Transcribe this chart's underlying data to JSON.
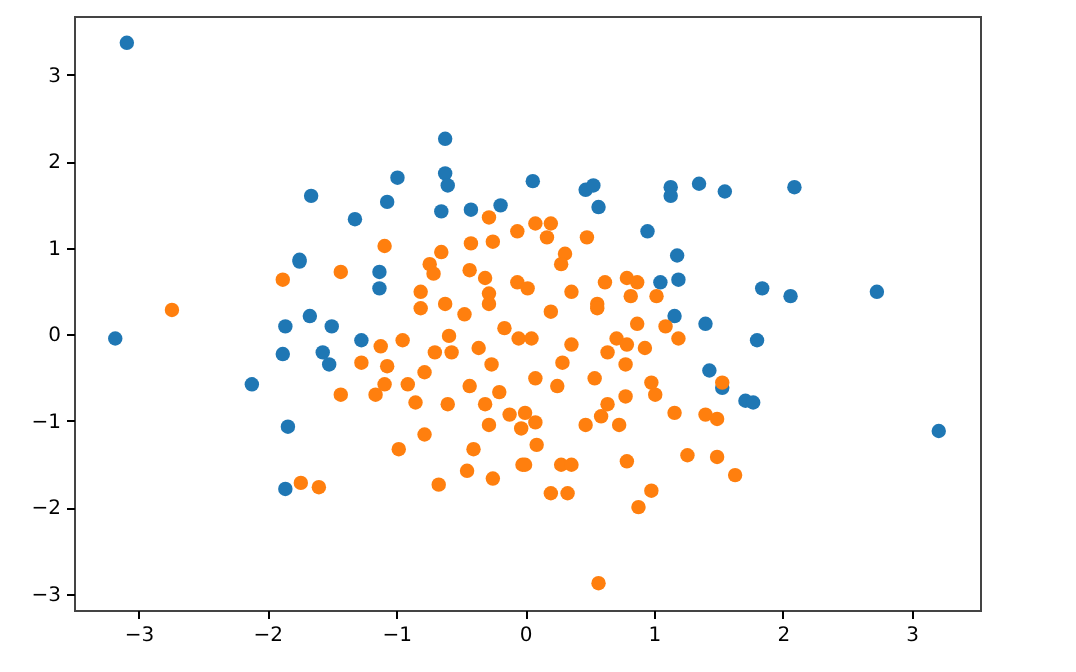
{
  "chart_data": {
    "type": "scatter",
    "marker": "circle",
    "grid": false,
    "xlim": [
      -3.5,
      3.53
    ],
    "ylim": [
      -3.19,
      3.68
    ],
    "xticks": [
      -3,
      -2,
      -1,
      0,
      1,
      2,
      3
    ],
    "yticks": [
      -3,
      -2,
      -1,
      0,
      1,
      2,
      3
    ],
    "series": [
      {
        "color": "#1f77b4",
        "x": [
          -3.09,
          -3.18,
          -2.12,
          -1.84,
          -1.86,
          -1.66,
          -1.75,
          -1.88,
          -1.86,
          -1.67,
          -1.5,
          -1.57,
          -1.52,
          -1.27,
          -0.62,
          -0.99,
          -0.62,
          -0.6,
          -1.07,
          -1.32,
          -0.65,
          -0.42,
          -0.19,
          0.06,
          -1.75,
          -1.13,
          -1.13,
          0.47,
          0.53,
          0.57,
          1.13,
          1.13,
          1.35,
          1.55,
          2.09,
          0.95,
          1.18,
          1.05,
          1.19,
          1.84,
          2.06,
          2.73,
          1.16,
          1.4,
          1.8,
          1.43,
          1.53,
          1.71,
          1.77,
          3.21
        ],
        "values": [
          3.37,
          -0.05,
          -0.58,
          -1.07,
          -1.79,
          1.6,
          0.86,
          -0.23,
          0.09,
          0.21,
          0.09,
          -0.21,
          -0.35,
          -0.07,
          2.26,
          1.81,
          1.86,
          1.72,
          1.53,
          1.33,
          1.42,
          1.44,
          1.49,
          1.77,
          0.84,
          0.72,
          0.53,
          1.67,
          1.72,
          1.47,
          1.7,
          1.6,
          1.74,
          1.65,
          1.7,
          1.19,
          0.91,
          0.6,
          0.63,
          0.53,
          0.44,
          0.49,
          0.21,
          0.12,
          -0.07,
          -0.42,
          -0.62,
          -0.77,
          -0.79,
          -1.12
        ]
      },
      {
        "color": "#ff7f0e",
        "x": [
          -1.88,
          -2.74,
          -1.43,
          -1.09,
          -0.28,
          -0.06,
          -0.65,
          -0.42,
          -0.25,
          -0.74,
          -0.71,
          -0.43,
          -0.31,
          -0.06,
          -0.81,
          -0.28,
          0.08,
          0.2,
          0.17,
          0.48,
          0.31,
          0.28,
          0.62,
          0.79,
          0.87,
          0.82,
          1.02,
          0.36,
          0.02,
          0.56,
          -1.74,
          -1.6,
          -1.43,
          -1.27,
          -1.12,
          -0.95,
          -1.07,
          -1.16,
          -1.09,
          -0.91,
          -0.85,
          -0.78,
          -0.7,
          -0.59,
          -0.57,
          -0.6,
          -0.78,
          -0.98,
          -0.67,
          -0.4,
          -0.45,
          -0.25,
          -0.02,
          -0.43,
          -0.36,
          -0.26,
          -0.31,
          -0.28,
          -0.2,
          -0.12,
          -0.03,
          -0.16,
          -0.05,
          -0.81,
          -0.62,
          -0.47,
          -0.28,
          0.56,
          0.2,
          0.05,
          0.36,
          0.29,
          0.08,
          0.25,
          0.64,
          0.71,
          0.79,
          0.87,
          1.09,
          1.19,
          0.93,
          0.78,
          0.54,
          0.98,
          1.01,
          0.78,
          0.64,
          0.59,
          0.47,
          0.73,
          1.16,
          1.4,
          1.49,
          1.53,
          0.0,
          0.08,
          0.09,
          0.0,
          0.28,
          0.36,
          0.2,
          0.33,
          0.79,
          1.26,
          1.49,
          1.63,
          0.98,
          0.88,
          0.57
        ],
        "values": [
          0.63,
          0.28,
          0.72,
          1.02,
          1.35,
          1.19,
          0.95,
          1.05,
          1.07,
          0.81,
          0.7,
          0.74,
          0.65,
          0.6,
          0.49,
          0.47,
          1.28,
          1.28,
          1.12,
          1.12,
          0.93,
          0.81,
          0.6,
          0.65,
          0.6,
          0.44,
          0.44,
          0.49,
          0.53,
          0.35,
          -1.72,
          -1.77,
          -0.7,
          -0.33,
          -0.14,
          -0.07,
          -0.37,
          -0.7,
          -0.58,
          -0.58,
          -0.79,
          -0.44,
          -0.21,
          -0.02,
          -0.21,
          -0.81,
          -1.16,
          -1.33,
          -1.74,
          -1.33,
          -1.58,
          -1.67,
          -1.51,
          -0.6,
          -0.16,
          -0.35,
          -0.81,
          -1.05,
          -0.67,
          -0.93,
          -1.09,
          0.07,
          -0.05,
          0.3,
          0.35,
          0.23,
          0.35,
          0.3,
          0.26,
          -0.05,
          -0.12,
          -0.33,
          -0.51,
          -0.6,
          -0.21,
          -0.05,
          -0.12,
          0.12,
          0.09,
          -0.05,
          -0.16,
          -0.35,
          -0.51,
          -0.56,
          -0.7,
          -0.72,
          -0.81,
          -0.95,
          -1.05,
          -1.05,
          -0.91,
          -0.93,
          -0.98,
          -0.56,
          -0.91,
          -1.02,
          -1.28,
          -1.51,
          -1.51,
          -1.51,
          -1.84,
          -1.84,
          -1.47,
          -1.4,
          -1.42,
          -1.63,
          -1.81,
          -2.0,
          -2.88
        ]
      }
    ]
  }
}
